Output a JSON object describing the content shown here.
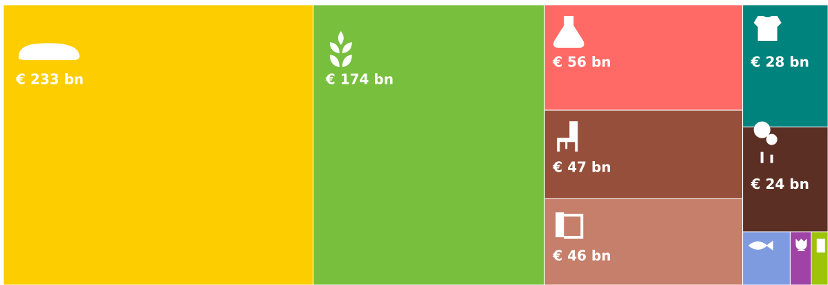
{
  "chart_data": {
    "type": "treemap",
    "values": [
      233,
      174,
      56,
      47,
      46,
      28,
      24,
      6.8,
      3.0,
      2.4
    ],
    "value_labels": [
      "€ 233 bn",
      "€ 174 bn",
      "€ 56 bn",
      "€ 47 bn",
      "€ 46 bn",
      "€ 28 bn",
      "€ 24 bn",
      null,
      null,
      null
    ],
    "colors": [
      "#fdcd00",
      "#79bf3e",
      "#ff6a66",
      "#964f3b",
      "#c57f6b",
      "#00827d",
      "#5b2f24",
      "#7f9be0",
      "#9f44a6",
      "#9bc40b"
    ]
  }
}
